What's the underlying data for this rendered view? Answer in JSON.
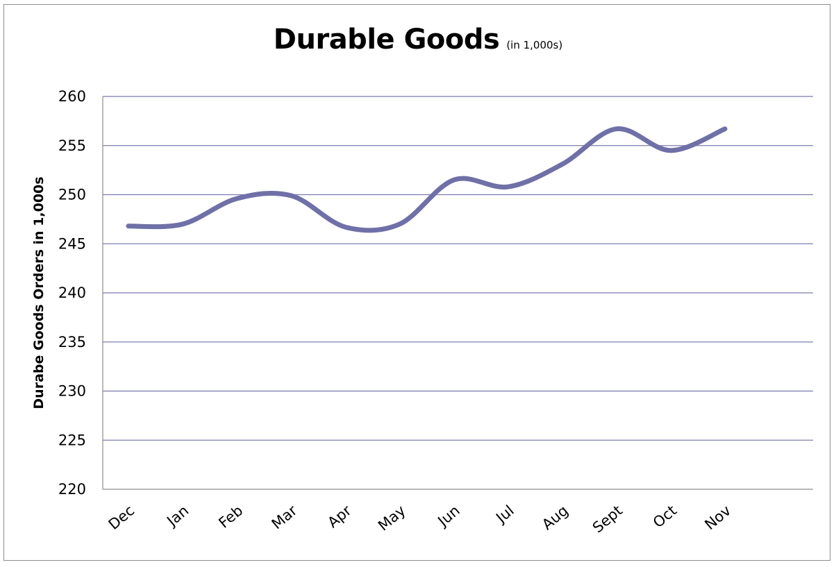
{
  "chart_data": {
    "type": "line",
    "title": "Durable Goods",
    "subtitle": "(in 1,000s)",
    "ylabel": "Durabe Goods Orders in 1,000s",
    "xlabel": "",
    "categories": [
      "Dec",
      "Jan",
      "Feb",
      "Mar",
      "Apr",
      "May",
      "Jun",
      "Jul",
      "Aug",
      "Sept",
      "Oct",
      "Nov"
    ],
    "series": [
      {
        "values": [
          246.8,
          247.0,
          249.6,
          249.9,
          246.7,
          247.0,
          251.5,
          250.8,
          253.1,
          256.7,
          254.5,
          256.7
        ]
      }
    ],
    "ylim": [
      220,
      260
    ],
    "yticks": [
      "220",
      "225",
      "230",
      "235",
      "240",
      "245",
      "250",
      "255",
      "260"
    ],
    "grid": true,
    "legend": "none",
    "smooth": true,
    "line_color": "#7070a8",
    "grid_color": "#7b7bb0"
  }
}
